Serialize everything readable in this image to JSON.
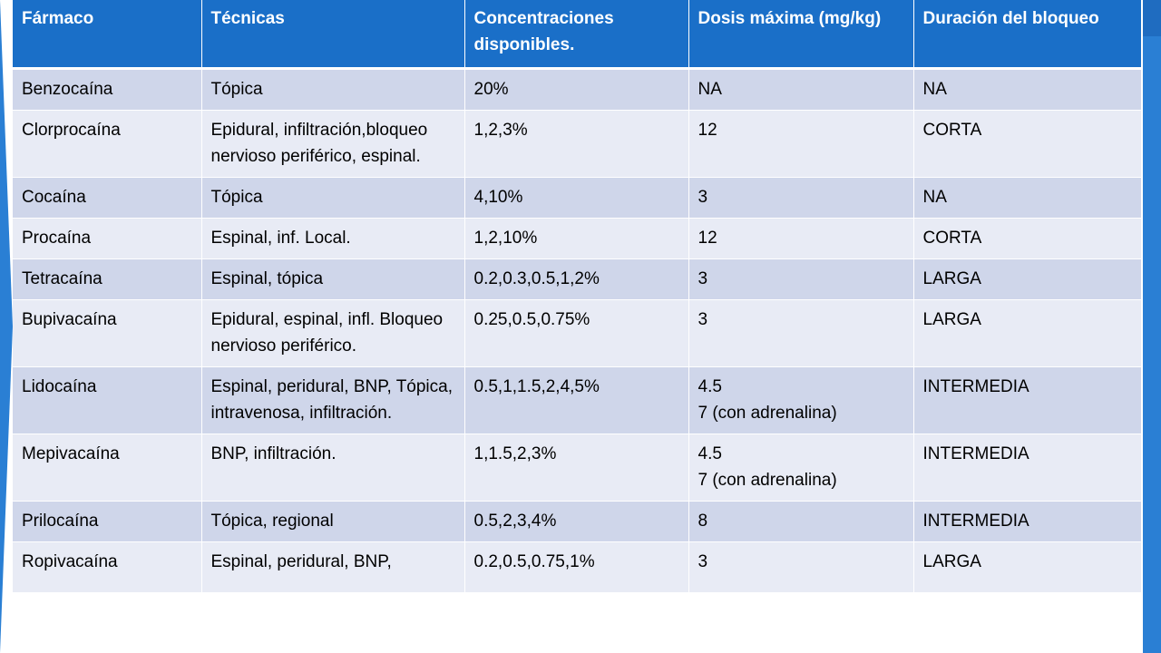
{
  "table": {
    "headers": [
      "Fármaco",
      "Técnicas",
      "Concentraciones disponibles.",
      "Dosis máxima (mg/kg)",
      "Duración del bloqueo"
    ],
    "rows": [
      [
        "Benzocaína",
        "Tópica",
        "20%",
        "NA",
        "NA"
      ],
      [
        "Clorprocaína",
        "Epidural, infiltración,bloqueo nervioso periférico, espinal.",
        "1,2,3%",
        "12",
        "CORTA"
      ],
      [
        "Cocaína",
        "Tópica",
        "4,10%",
        "3",
        "NA"
      ],
      [
        "Procaína",
        "Espinal, inf. Local.",
        "1,2,10%",
        "12",
        "CORTA"
      ],
      [
        "Tetracaína",
        "Espinal, tópica",
        "0.2,0.3,0.5,1,2%",
        "3",
        "LARGA"
      ],
      [
        "Bupivacaína",
        "Epidural, espinal, infl. Bloqueo nervioso periférico.",
        "0.25,0.5,0.75%",
        "3",
        "LARGA"
      ],
      [
        "Lidocaína",
        "Espinal, peridural,  BNP, Tópica, intravenosa, infiltración.",
        "0.5,1,1.5,2,4,5%",
        "4.5\n7 (con adrenalina)",
        "INTERMEDIA"
      ],
      [
        "Mepivacaína",
        "BNP, infiltración.",
        "1,1.5,2,3%",
        "4.5\n7 (con adrenalina)",
        "INTERMEDIA"
      ],
      [
        "Prilocaína",
        "Tópica, regional",
        "0.5,2,3,4%",
        "8",
        "INTERMEDIA"
      ],
      [
        "Ropivacaína",
        "Espinal, peridural,  BNP,",
        "0.2,0.5,0.75,1%",
        "3",
        "LARGA"
      ]
    ]
  },
  "colors": {
    "header_bg": "#1a6fc8",
    "row_odd_bg": "#cfd6ea",
    "row_even_bg": "#e8ebf5",
    "accent": "#2a7fd4"
  }
}
